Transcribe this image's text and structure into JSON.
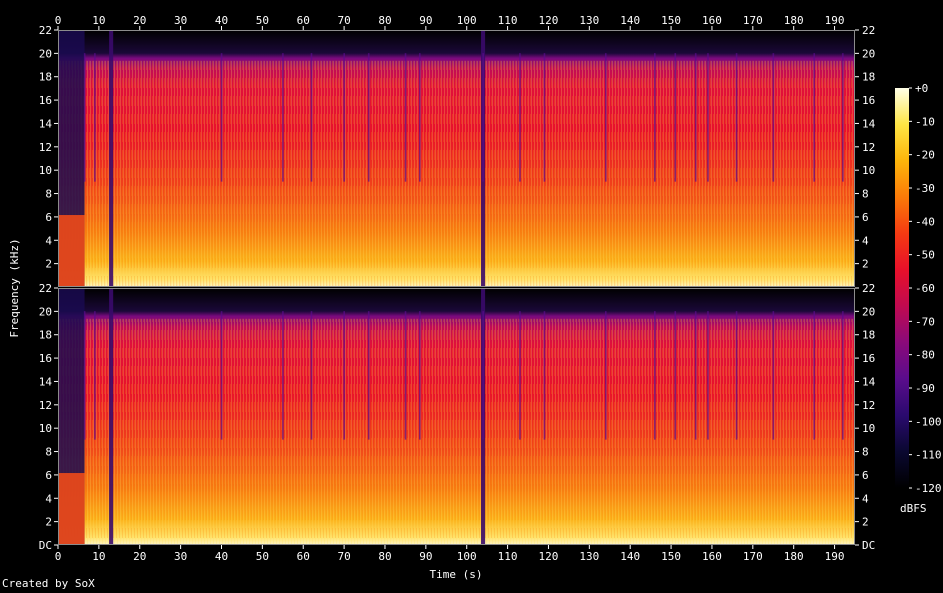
{
  "chart_data": {
    "type": "heatmap",
    "title": "",
    "xlabel": "Time (s)",
    "ylabel": "Frequency (kHz)",
    "colorbar_label": "dBFS",
    "credit": "Created by SoX",
    "xlim": [
      0,
      195
    ],
    "ylim_khz": [
      0,
      22
    ],
    "x_ticks": [
      0,
      10,
      20,
      30,
      40,
      50,
      60,
      70,
      80,
      90,
      100,
      110,
      120,
      130,
      140,
      150,
      160,
      170,
      180,
      190
    ],
    "y_ticks": [
      "DC",
      "2",
      "4",
      "6",
      "8",
      "10",
      "12",
      "14",
      "16",
      "18",
      "20",
      "22"
    ],
    "colorbar_ticks": [
      "+0",
      "-10",
      "-20",
      "-30",
      "-40",
      "-50",
      "-60",
      "-70",
      "-80",
      "-90",
      "-100",
      "-110",
      "-120"
    ],
    "colorbar_range_db": [
      -120,
      0
    ],
    "channels": 2,
    "colors": {
      "background": "#000000",
      "text": "#ffffff",
      "colormap": [
        "#000000",
        "#0a0830",
        "#2a0a6e",
        "#5a0c8c",
        "#8a0a7a",
        "#c00a50",
        "#e8102a",
        "#f53a12",
        "#fb7a08",
        "#fdb50a",
        "#fee545",
        "#ffffe8"
      ]
    },
    "description_levels": {
      "lowpass_cutoff_khz": 20,
      "high_band_db": -60,
      "low_band_db": -25
    },
    "quiet_segments_s": [
      [
        0,
        6.5
      ],
      [
        12.5,
        13.5
      ],
      [
        103.5,
        104.5
      ]
    ],
    "dips_s": [
      6.5,
      9,
      40,
      55,
      62,
      70,
      76,
      85,
      88.5,
      104,
      113,
      119,
      134,
      146,
      151,
      156,
      159,
      166,
      175,
      185,
      192
    ]
  }
}
